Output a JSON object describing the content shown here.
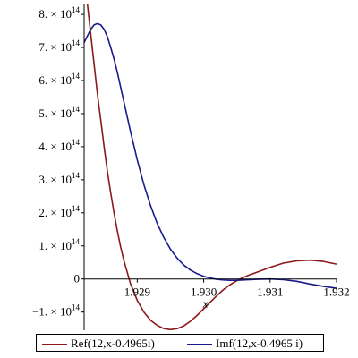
{
  "chart_data": {
    "type": "line",
    "xlabel": "x",
    "ylabel": "",
    "xlim": [
      1.9282,
      1.932
    ],
    "ylim": [
      -155000000000000.0,
      830000000000000.0
    ],
    "x_ticks": [
      {
        "value": 1.929,
        "label": "1.929"
      },
      {
        "value": 1.93,
        "label": "1.930"
      },
      {
        "value": 1.931,
        "label": "1.931"
      },
      {
        "value": 1.932,
        "label": "1.932"
      }
    ],
    "y_ticks": [
      {
        "value": 800000000000000.0,
        "mantissa": "8.",
        "base": "10",
        "exp": "14"
      },
      {
        "value": 700000000000000.0,
        "mantissa": "7.",
        "base": "10",
        "exp": "14"
      },
      {
        "value": 600000000000000.0,
        "mantissa": "6.",
        "base": "10",
        "exp": "14"
      },
      {
        "value": 500000000000000.0,
        "mantissa": "5.",
        "base": "10",
        "exp": "14"
      },
      {
        "value": 400000000000000.0,
        "mantissa": "4.",
        "base": "10",
        "exp": "14"
      },
      {
        "value": 300000000000000.0,
        "mantissa": "3.",
        "base": "10",
        "exp": "14"
      },
      {
        "value": 200000000000000.0,
        "mantissa": "2.",
        "base": "10",
        "exp": "14"
      },
      {
        "value": 100000000000000.0,
        "mantissa": "1.",
        "base": "10",
        "exp": "14"
      },
      {
        "value": 0,
        "mantissa": "0",
        "base": "",
        "exp": ""
      },
      {
        "value": -100000000000000.0,
        "mantissa": "−1.",
        "base": "10",
        "exp": "14"
      }
    ],
    "grid": false,
    "legend_position": "bottom",
    "series": [
      {
        "name": "Ref(12,x-0.4965i)",
        "color": "#8b1a1a",
        "x": [
          1.92825,
          1.9283,
          1.92835,
          1.9284,
          1.92845,
          1.9285,
          1.92855,
          1.9286,
          1.92865,
          1.9287,
          1.92875,
          1.9288,
          1.9289,
          1.929,
          1.9291,
          1.9292,
          1.9293,
          1.9294,
          1.9295,
          1.9296,
          1.9297,
          1.9298,
          1.9299,
          1.93,
          1.9301,
          1.9302,
          1.9303,
          1.9304,
          1.9305,
          1.9306,
          1.9307,
          1.9308,
          1.931,
          1.9312,
          1.9314,
          1.9316,
          1.9318,
          1.932
        ],
        "y": [
          830000000000000.0,
          740000000000000.0,
          650000000000000.0,
          560000000000000.0,
          480000000000000.0,
          400000000000000.0,
          325000000000000.0,
          260000000000000.0,
          200000000000000.0,
          145000000000000.0,
          97000000000000.0,
          55000000000000.0,
          -15000000000000.0,
          -65000000000000.0,
          -100000000000000.0,
          -125000000000000.0,
          -140000000000000.0,
          -150000000000000.0,
          -153000000000000.0,
          -150000000000000.0,
          -142000000000000.0,
          -128000000000000.0,
          -110000000000000.0,
          -90000000000000.0,
          -70000000000000.0,
          -50000000000000.0,
          -32000000000000.0,
          -17000000000000.0,
          -5000000000000.0,
          5000000000000.0,
          13000000000000.0,
          20000000000000.0,
          35000000000000.0,
          48000000000000.0,
          55000000000000.0,
          57000000000000.0,
          53000000000000.0,
          45000000000000.0
        ]
      },
      {
        "name": "Imf(12,x-0.4965 i)",
        "color": "#1a1a8c",
        "x": [
          1.9282,
          1.92825,
          1.9283,
          1.92835,
          1.9284,
          1.92845,
          1.9285,
          1.92855,
          1.9286,
          1.92865,
          1.9287,
          1.9288,
          1.9289,
          1.929,
          1.9291,
          1.9292,
          1.9293,
          1.9294,
          1.9295,
          1.9296,
          1.9297,
          1.9298,
          1.9299,
          1.93,
          1.9301,
          1.9302,
          1.9303,
          1.9304,
          1.9305,
          1.9306,
          1.9307,
          1.9308,
          1.931,
          1.9312,
          1.9314,
          1.9316,
          1.9318,
          1.932
        ],
        "y": [
          715000000000000.0,
          735000000000000.0,
          755000000000000.0,
          768000000000000.0,
          772000000000000.0,
          768000000000000.0,
          755000000000000.0,
          732000000000000.0,
          700000000000000.0,
          665000000000000.0,
          625000000000000.0,
          535000000000000.0,
          445000000000000.0,
          360000000000000.0,
          285000000000000.0,
          222000000000000.0,
          168000000000000.0,
          125000000000000.0,
          90000000000000.0,
          63000000000000.0,
          42000000000000.0,
          27000000000000.0,
          16000000000000.0,
          8000000000000.0,
          3000000000000.0,
          -1000000000000.0,
          -3000000000000.0,
          -4000000000000.0,
          -4000000000000.0,
          -3000000000000.0,
          -2000000000000.0,
          -1000000000000.0,
          0.0,
          -2000000000000.0,
          -7000000000000.0,
          -15000000000000.0,
          -22000000000000.0,
          -28000000000000.0
        ]
      }
    ]
  }
}
